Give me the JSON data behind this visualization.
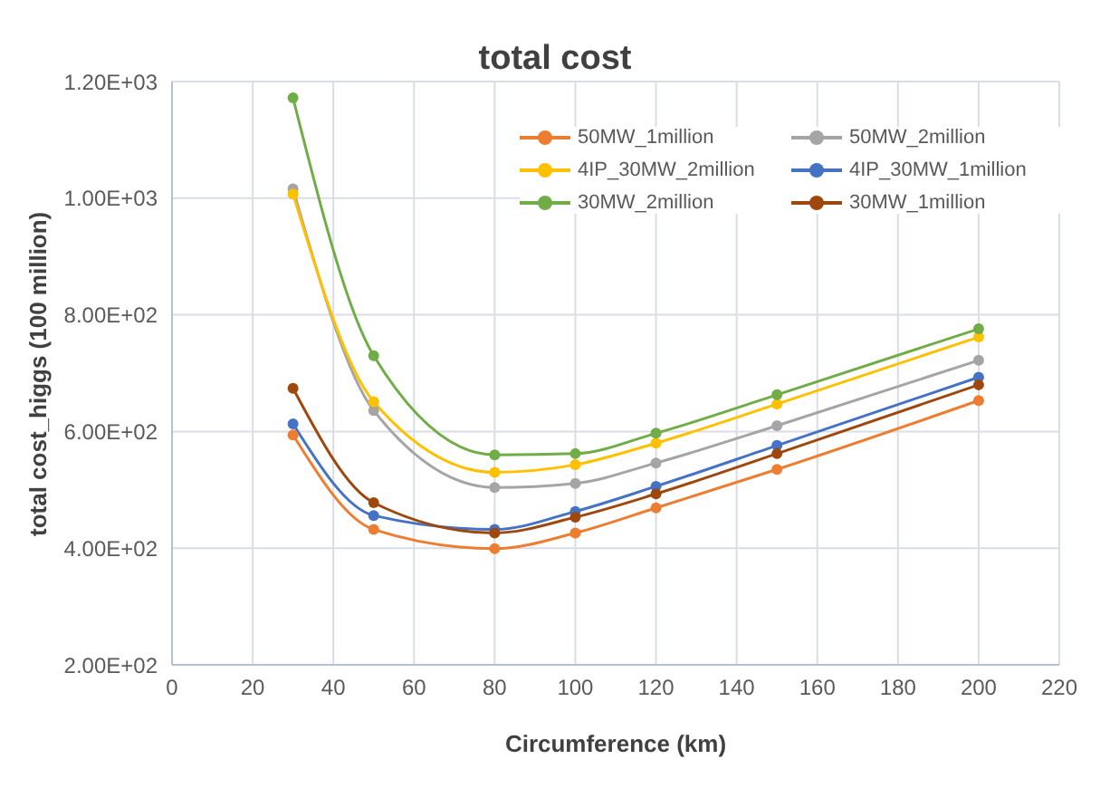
{
  "chart_data": {
    "type": "line",
    "title": "total cost",
    "xlabel": "Circumference (km)",
    "ylabel": "total cost_higgs (100 million)",
    "x": [
      30,
      50,
      80,
      100,
      120,
      150,
      200
    ],
    "xlim": [
      0,
      220
    ],
    "xticks": [
      0,
      20,
      40,
      60,
      80,
      100,
      120,
      140,
      160,
      180,
      200,
      220
    ],
    "ylim": [
      200,
      1200
    ],
    "yticks": [
      {
        "value": 200,
        "label": "2.00E+02"
      },
      {
        "value": 400,
        "label": "4.00E+02"
      },
      {
        "value": 600,
        "label": "6.00E+02"
      },
      {
        "value": 800,
        "label": "8.00E+02"
      },
      {
        "value": 1000,
        "label": "1.00E+03"
      },
      {
        "value": 1200,
        "label": "1.20E+03"
      }
    ],
    "grid": true,
    "legend": "top right",
    "marker": "circle",
    "line_style": "solid",
    "series": [
      {
        "name": "50MW_1million",
        "color": "#ed7d31",
        "values": [
          594,
          432,
          399,
          426,
          469,
          535,
          653
        ]
      },
      {
        "name": "50MW_2million",
        "color": "#a5a5a5",
        "values": [
          1016,
          636,
          504,
          511,
          546,
          610,
          722
        ]
      },
      {
        "name": "4IP_30MW_2million",
        "color": "#ffc000",
        "values": [
          1007,
          651,
          530,
          543,
          580,
          647,
          762
        ]
      },
      {
        "name": "4IP_30MW_1million",
        "color": "#4472c4",
        "values": [
          613,
          456,
          432,
          463,
          506,
          576,
          693
        ]
      },
      {
        "name": "30MW_2million",
        "color": "#70ad47",
        "values": [
          1172,
          730,
          560,
          562,
          597,
          663,
          776
        ]
      },
      {
        "name": "30MW_1million",
        "color": "#9e480e",
        "values": [
          674,
          478,
          426,
          453,
          493,
          562,
          680
        ]
      }
    ]
  }
}
